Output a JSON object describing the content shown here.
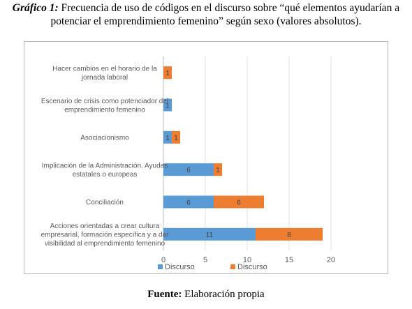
{
  "caption": {
    "lead": "Gráfico 1:",
    "text": " Frecuencia de uso de códigos en el discurso sobre “qué elementos ayudarían a potenciar el emprendimiento femenino” según sexo (valores absolutos)."
  },
  "source": {
    "lead": "Fuente:",
    "text": " Elaboración propia"
  },
  "chart_data": {
    "type": "bar",
    "orientation": "horizontal",
    "stacked": true,
    "categories": [
      [
        "Acciones orientadas a crear cultura",
        "empresarial, formación específica y a dar",
        "visibilidad al emprendimiento femenino"
      ],
      [
        "Conciliación"
      ],
      [
        "Implicación de la Administración. Ayudas",
        "estatales o europeas"
      ],
      [
        "Asociacionismo"
      ],
      [
        "Escenario de crisis como potenciador del",
        "emprendimiento femenino"
      ],
      [
        "Hacer cambios en el horario de la",
        "jornada laboral"
      ]
    ],
    "series": [
      {
        "name": "Discurso",
        "color": "#5b9bd5",
        "values": [
          11,
          6,
          6,
          1,
          1,
          0
        ]
      },
      {
        "name": "Discurso",
        "color": "#ed7d31",
        "values": [
          8,
          6,
          1,
          1,
          0,
          1
        ]
      }
    ],
    "xlim": [
      0,
      20
    ],
    "xticks": [
      0,
      5,
      10,
      15,
      20
    ],
    "legend_position": "bottom",
    "grid": true
  }
}
